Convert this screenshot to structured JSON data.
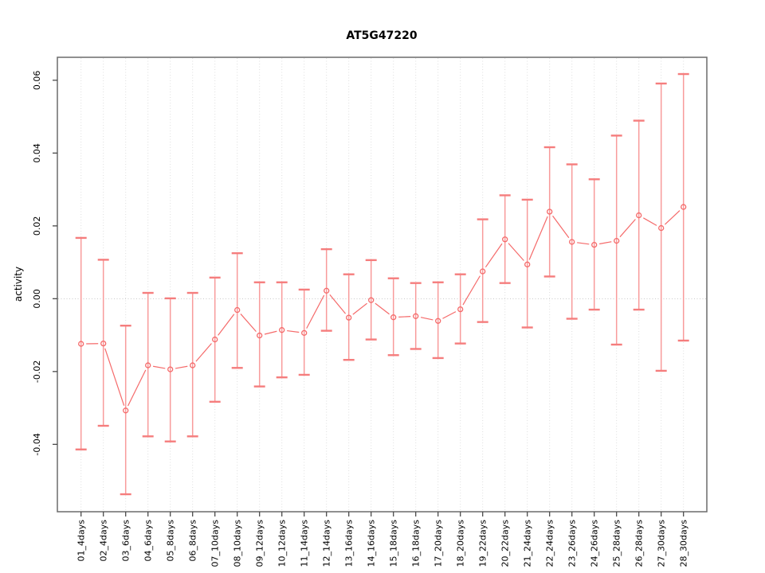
{
  "chart_data": {
    "type": "scatter",
    "title": "AT5G47220",
    "xlabel": "",
    "ylabel": "activity",
    "legend": "none",
    "grid": "vertical-dotted",
    "zero_line_dotted": true,
    "ylim": [
      -0.0585,
      0.0663
    ],
    "ytick_values": [
      -0.04,
      -0.02,
      0.0,
      0.02,
      0.04,
      0.06
    ],
    "ytick_labels": [
      "-0.04",
      "-0.02",
      "0.00",
      "0.02",
      "0.04",
      "0.06"
    ],
    "categories": [
      "01_4days",
      "02_4days",
      "03_6days",
      "04_6days",
      "05_8days",
      "06_8days",
      "07_10days",
      "08_10days",
      "09_12days",
      "10_12days",
      "11_14days",
      "12_14days",
      "13_16days",
      "14_16days",
      "15_18days",
      "16_18days",
      "17_20days",
      "18_20days",
      "19_22days",
      "20_22days",
      "21_24days",
      "22_24days",
      "23_26days",
      "24_26days",
      "25_28days",
      "26_28days",
      "27_30days",
      "28_30days"
    ],
    "series": [
      {
        "name": "activity",
        "marker": "open-circle",
        "values": [
          -0.0124,
          -0.0123,
          -0.0307,
          -0.0183,
          -0.0194,
          -0.0183,
          -0.0112,
          -0.0031,
          -0.0101,
          -0.0086,
          -0.0094,
          0.0022,
          -0.0052,
          -0.0004,
          -0.0051,
          -0.0048,
          -0.0061,
          -0.0029,
          0.0075,
          0.0163,
          0.0094,
          0.0239,
          0.0156,
          0.0148,
          0.0159,
          0.0229,
          0.0194,
          0.0252
        ],
        "upper": [
          0.0167,
          0.0107,
          -0.0074,
          0.0016,
          0.0001,
          0.0016,
          0.0058,
          0.0125,
          0.0045,
          0.0045,
          0.0025,
          0.0136,
          0.0067,
          0.0106,
          0.0056,
          0.0043,
          0.0045,
          0.0067,
          0.0218,
          0.0284,
          0.0272,
          0.0416,
          0.0369,
          0.0328,
          0.0448,
          0.0489,
          0.0591,
          0.0617
        ],
        "lower": [
          -0.0414,
          -0.0349,
          -0.0537,
          -0.0378,
          -0.0392,
          -0.0378,
          -0.0283,
          -0.019,
          -0.0241,
          -0.0216,
          -0.0209,
          -0.0088,
          -0.0168,
          -0.0112,
          -0.0155,
          -0.0138,
          -0.0163,
          -0.0123,
          -0.0064,
          0.0043,
          -0.0079,
          0.0061,
          -0.0055,
          -0.003,
          -0.0126,
          -0.003,
          -0.0198,
          -0.0115
        ]
      }
    ],
    "colors": {
      "series": "#f56a6a",
      "error_bar": "#f89b9b",
      "error_cap": "#f57d7d",
      "grid": "#dedede",
      "zero_line": "#c6c6c6",
      "frame": "#6b6b6b",
      "tick": "#4a4a4a",
      "text": "#000000",
      "background": "#ffffff"
    }
  }
}
